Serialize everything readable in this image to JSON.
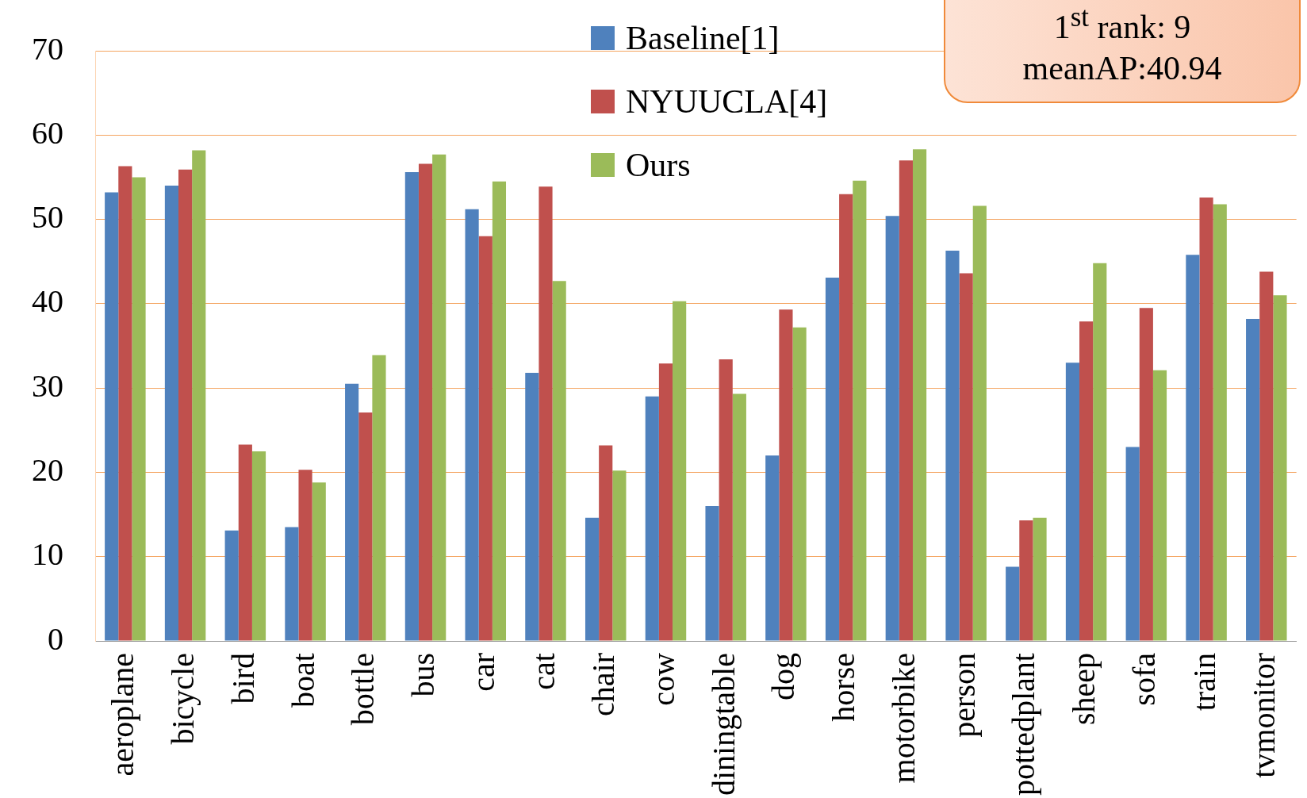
{
  "chart_data": {
    "type": "bar",
    "categories": [
      "aeroplane",
      "bicycle",
      "bird",
      "boat",
      "bottle",
      "bus",
      "car",
      "cat",
      "chair",
      "cow",
      "diningtable",
      "dog",
      "horse",
      "motorbike",
      "person",
      "pottedplant",
      "sheep",
      "sofa",
      "train",
      "tvmonitor"
    ],
    "series": [
      {
        "name": "Baseline[1]",
        "color": "#4f81bd",
        "values": [
          53.2,
          54.0,
          13.1,
          13.5,
          30.5,
          55.6,
          51.2,
          31.8,
          14.6,
          29.0,
          16.0,
          22.0,
          43.1,
          50.4,
          46.3,
          8.8,
          33.0,
          23.0,
          45.8,
          38.2
        ]
      },
      {
        "name": "NYUUCLA[4]",
        "color": "#c0504d",
        "values": [
          56.3,
          55.9,
          23.3,
          20.3,
          27.1,
          56.6,
          48.0,
          53.9,
          23.2,
          32.9,
          33.4,
          39.3,
          53.0,
          57.0,
          43.6,
          14.3,
          37.9,
          39.5,
          52.6,
          43.8
        ]
      },
      {
        "name": "Ours",
        "color": "#9bbb59",
        "values": [
          55.0,
          58.2,
          22.5,
          18.8,
          33.9,
          57.7,
          54.5,
          42.7,
          20.2,
          40.3,
          29.3,
          37.2,
          54.6,
          58.3,
          51.6,
          14.6,
          44.8,
          32.1,
          51.8,
          41.0
        ]
      }
    ],
    "ylim": [
      0,
      70
    ],
    "yticks": [
      0,
      10,
      20,
      30,
      40,
      50,
      60,
      70
    ],
    "grid": "y",
    "legend": "top",
    "annotations": [
      "1$^{st}$ rank: 9",
      "meanAP:40.94"
    ]
  }
}
